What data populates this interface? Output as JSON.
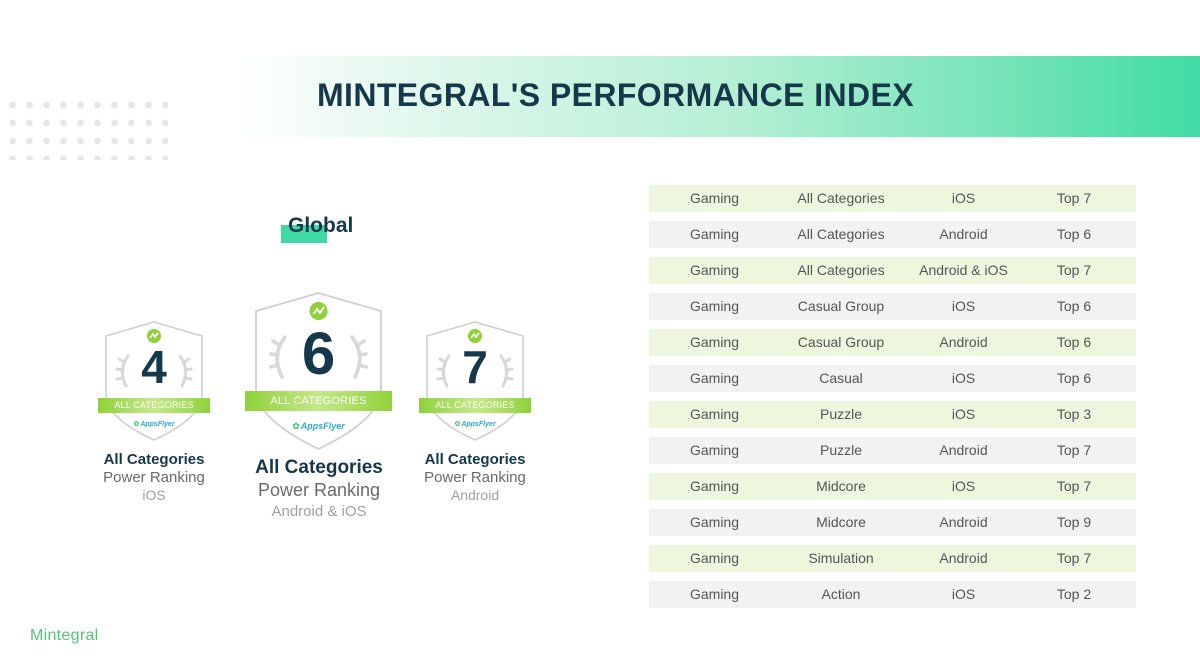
{
  "header": {
    "title": "MINTEGRAL'S PERFORMANCE INDEX"
  },
  "section": {
    "heading": "Global"
  },
  "badges": [
    {
      "rank": "4",
      "ribbon": "ALL CATEGORIES",
      "partner": "AppsFlyer",
      "caption_title": "All Categories",
      "caption_sub": "Power Ranking",
      "caption_platform": "iOS"
    },
    {
      "rank": "6",
      "ribbon": "ALL CATEGORIES",
      "partner": "AppsFlyer",
      "caption_title": "All Categories",
      "caption_sub": "Power Ranking",
      "caption_platform": "Android & iOS"
    },
    {
      "rank": "7",
      "ribbon": "ALL CATEGORIES",
      "partner": "AppsFlyer",
      "caption_title": "All Categories",
      "caption_sub": "Power Ranking",
      "caption_platform": "Android"
    }
  ],
  "table": {
    "rows": [
      {
        "vertical": "Gaming",
        "category": "All Categories",
        "platform": "iOS",
        "rank": "Top 7"
      },
      {
        "vertical": "Gaming",
        "category": "All Categories",
        "platform": "Android",
        "rank": "Top 6"
      },
      {
        "vertical": "Gaming",
        "category": "All Categories",
        "platform": "Android & iOS",
        "rank": "Top 7"
      },
      {
        "vertical": "Gaming",
        "category": "Casual Group",
        "platform": "iOS",
        "rank": "Top 6"
      },
      {
        "vertical": "Gaming",
        "category": "Casual Group",
        "platform": "Android",
        "rank": "Top 6"
      },
      {
        "vertical": "Gaming",
        "category": "Casual",
        "platform": "iOS",
        "rank": "Top 6"
      },
      {
        "vertical": "Gaming",
        "category": "Puzzle",
        "platform": "iOS",
        "rank": "Top 3"
      },
      {
        "vertical": "Gaming",
        "category": "Puzzle",
        "platform": "Android",
        "rank": "Top 7"
      },
      {
        "vertical": "Gaming",
        "category": "Midcore",
        "platform": "iOS",
        "rank": "Top 7"
      },
      {
        "vertical": "Gaming",
        "category": "Midcore",
        "platform": "Android",
        "rank": "Top 9"
      },
      {
        "vertical": "Gaming",
        "category": "Simulation",
        "platform": "Android",
        "rank": "Top 7"
      },
      {
        "vertical": "Gaming",
        "category": "Action",
        "platform": "iOS",
        "rank": "Top 2"
      }
    ]
  },
  "footer": {
    "logo": "Mintegral"
  },
  "colors": {
    "accent_green": "#3ddba3",
    "ribbon_green": "#8fd13a",
    "title_navy": "#16384b",
    "row_green": "#eef6de",
    "row_gray": "#f2f2f2"
  },
  "icons": {
    "badge_top": "mintegral-badge-icon",
    "wreath": "laurel-wreath-icon",
    "partner": "appsflyer-logo-icon"
  }
}
